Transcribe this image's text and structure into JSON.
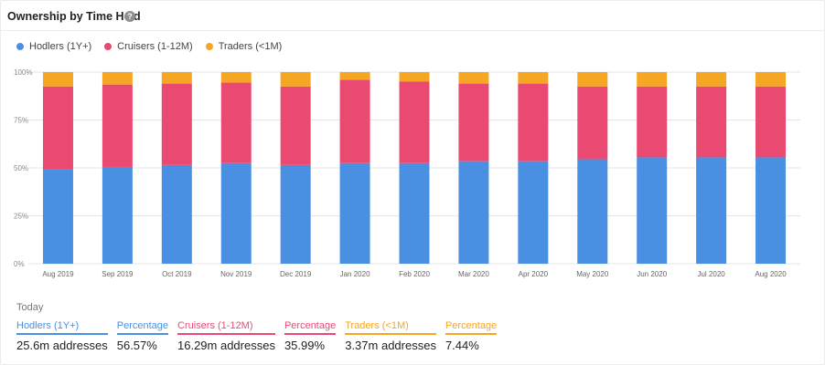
{
  "header": {
    "title": "Ownership by Time Held",
    "help_icon": "question-circle-icon"
  },
  "colors": {
    "hodlers": "#4a90e2",
    "cruisers": "#ea4a72",
    "traders": "#f5a623"
  },
  "chart_data": {
    "type": "bar",
    "stacked": true,
    "categories": [
      "Aug 2019",
      "Sep 2019",
      "Oct 2019",
      "Nov 2019",
      "Dec 2019",
      "Jan 2020",
      "Feb 2020",
      "Mar 2020",
      "Apr 2020",
      "May 2020",
      "Jun 2020",
      "Jul 2020",
      "Aug 2020"
    ],
    "series": [
      {
        "name": "Hodlers (1Y+)",
        "color": "#4a90e2",
        "values": [
          49.5,
          50.5,
          51.5,
          52.5,
          51.5,
          52.5,
          52.5,
          53.5,
          53.5,
          54.5,
          55.5,
          55.5,
          55.5
        ]
      },
      {
        "name": "Cruisers (1-12M)",
        "color": "#ea4a72",
        "values": [
          43.0,
          43.0,
          42.5,
          42.0,
          41.0,
          43.5,
          42.5,
          40.5,
          40.5,
          38.0,
          37.0,
          37.0,
          37.0
        ]
      },
      {
        "name": "Traders (<1M)",
        "color": "#f5a623",
        "values": [
          7.5,
          6.5,
          6.0,
          5.5,
          7.5,
          4.0,
          5.0,
          6.0,
          6.0,
          7.5,
          7.5,
          7.5,
          7.5
        ]
      }
    ],
    "yticks": [
      "0%",
      "25%",
      "50%",
      "75%",
      "100%"
    ],
    "ylim": [
      0,
      100
    ],
    "grid": true,
    "legend": "top-left"
  },
  "summary": {
    "heading": "Today",
    "stats": [
      {
        "label": "Hodlers (1Y+)",
        "value": "25.6m addresses",
        "cls": "lbl-blue"
      },
      {
        "label": "Percentage",
        "value": "56.57%",
        "cls": "lbl-blue"
      },
      {
        "label": "Cruisers (1-12M)",
        "value": "16.29m addresses",
        "cls": "lbl-pink"
      },
      {
        "label": "Percentage",
        "value": "35.99%",
        "cls": "lbl-pink"
      },
      {
        "label": "Traders (<1M)",
        "value": "3.37m addresses",
        "cls": "lbl-orange"
      },
      {
        "label": "Percentage",
        "value": "7.44%",
        "cls": "lbl-orange"
      }
    ]
  }
}
